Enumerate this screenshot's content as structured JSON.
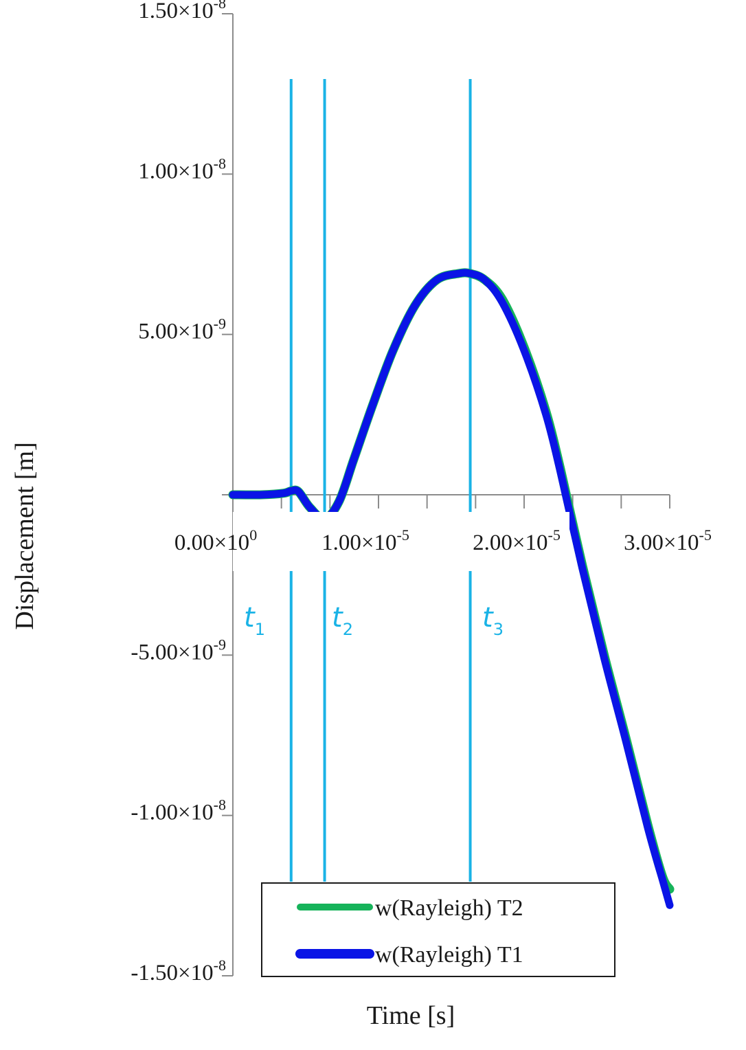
{
  "chart_data": {
    "type": "line",
    "xlabel": "Time [s]",
    "ylabel": "Displacement [m]",
    "xlim": [
      0,
      3e-05
    ],
    "ylim": [
      -1.5e-08,
      1.5e-08
    ],
    "grid": false,
    "legend_position": "bottom-center",
    "x_ticks": [
      {
        "value": 0,
        "mantissa": "0.00",
        "exponent": "0"
      },
      {
        "value": 1e-05,
        "mantissa": "1.00",
        "exponent": "-5"
      },
      {
        "value": 2e-05,
        "mantissa": "2.00",
        "exponent": "-5"
      },
      {
        "value": 3e-05,
        "mantissa": "3.00",
        "exponent": "-5"
      }
    ],
    "y_ticks": [
      {
        "value": 1.5e-08,
        "mantissa": "1.50",
        "exponent": "-8"
      },
      {
        "value": 1e-08,
        "mantissa": "1.00",
        "exponent": "-8"
      },
      {
        "value": 5e-09,
        "mantissa": "5.00",
        "exponent": "-9"
      },
      {
        "value": -5e-09,
        "mantissa": "-5.00",
        "exponent": "-9"
      },
      {
        "value": -1e-08,
        "mantissa": "-1.00",
        "exponent": "-8"
      },
      {
        "value": -1.5e-08,
        "mantissa": "-1.50",
        "exponent": "-8"
      }
    ],
    "markers": [
      {
        "label": "t",
        "sub": "1",
        "x": 4e-06
      },
      {
        "label": "t",
        "sub": "2",
        "x": 6.3e-06
      },
      {
        "label": "t",
        "sub": "3",
        "x": 1.63e-05
      }
    ],
    "series": [
      {
        "name": "w(Rayleigh) T2",
        "color": "#16b35a",
        "x": [
          0,
          2e-06,
          3.5e-06,
          4e-06,
          4.5e-06,
          5.3e-06,
          6.3e-06,
          7.3e-06,
          8.3e-06,
          9.6e-06,
          1.1e-05,
          1.25e-05,
          1.4e-05,
          1.55e-05,
          1.63e-05,
          1.73e-05,
          1.85e-05,
          2e-05,
          2.15e-05,
          2.25e-05,
          2.4e-05,
          2.55e-05,
          2.7e-05,
          2.85e-05,
          2.95e-05,
          3e-05
        ],
        "y": [
          0,
          0,
          5e-11,
          1.2e-10,
          1e-10,
          -4e-10,
          -7.5e-10,
          -2e-10,
          1.1e-09,
          2.8e-09,
          4.5e-09,
          5.9e-09,
          6.7e-09,
          6.9e-09,
          6.9e-09,
          6.7e-09,
          6.1e-09,
          4.6e-09,
          2.6e-09,
          8e-10,
          -2.2e-09,
          -5e-09,
          -7.6e-09,
          -1.03e-08,
          -1.19e-08,
          -1.23e-08
        ]
      },
      {
        "name": "w(Rayleigh) T1",
        "color": "#0a14e6",
        "x": [
          0,
          2e-06,
          3.5e-06,
          4e-06,
          4.5e-06,
          5.3e-06,
          6.3e-06,
          7.3e-06,
          8.3e-06,
          9.6e-06,
          1.1e-05,
          1.25e-05,
          1.4e-05,
          1.55e-05,
          1.63e-05,
          1.73e-05,
          1.85e-05,
          2e-05,
          2.15e-05,
          2.25e-05,
          2.4e-05,
          2.55e-05,
          2.7e-05,
          2.85e-05,
          2.95e-05,
          3e-05
        ],
        "y": [
          0,
          0,
          5e-11,
          1.2e-10,
          1e-10,
          -4e-10,
          -7.5e-10,
          -2e-10,
          1.1e-09,
          2.8e-09,
          4.5e-09,
          5.9e-09,
          6.7e-09,
          6.9e-09,
          6.9e-09,
          6.7e-09,
          6e-09,
          4.5e-09,
          2.5e-09,
          7e-10,
          -2.3e-09,
          -5.1e-09,
          -7.7e-09,
          -1.04e-08,
          -1.2e-08,
          -1.28e-08
        ]
      }
    ]
  }
}
